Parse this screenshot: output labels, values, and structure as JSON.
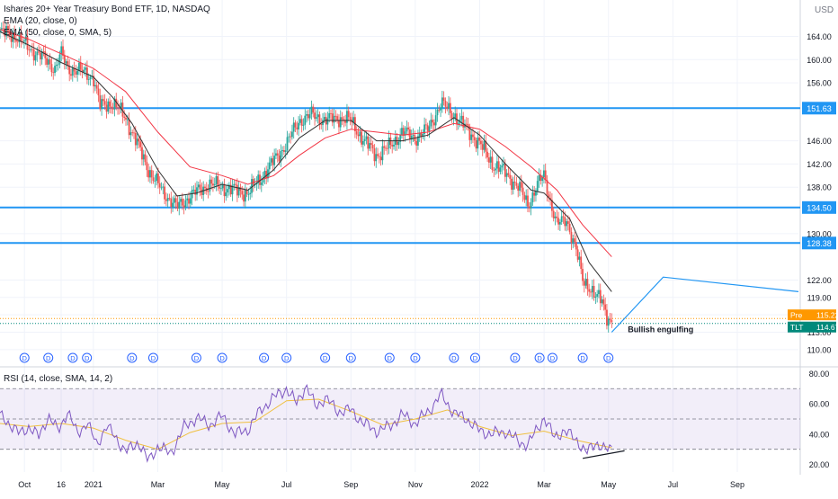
{
  "header": {
    "symbol_line": "Ishares 20+ Year Treasury Bond ETF, 1D, NASDAQ",
    "ind1": "EMA (20, close, 0)",
    "ind2": "EMA (50, close, 0, SMA, 5)",
    "rsi_label": "RSI (14, close, SMA, 14, 2)",
    "currency": "USD"
  },
  "colors": {
    "up": "#26a69a",
    "down": "#ef5350",
    "ema20": "#333333",
    "ema50": "#f23645",
    "hline": "#2196f3",
    "rsi": "#7e57c2",
    "rsi_ma": "#f0c040",
    "pre": "#ff9800",
    "tlt": "#00897b"
  },
  "chart_data": {
    "type": "candlestick",
    "price_ticks": [
      164.0,
      160.0,
      156.0,
      151.63,
      146.0,
      142.0,
      138.0,
      134.5,
      130.0,
      128.38,
      122.0,
      119.0,
      116.0,
      113.0,
      110.0
    ],
    "price_range": [
      107.5,
      169.5
    ],
    "x_labels": [
      {
        "t": 0.93,
        "label": "Oct"
      },
      {
        "t": 1.5,
        "label": "16"
      },
      {
        "t": 2.0,
        "label": "2021"
      },
      {
        "t": 3.0,
        "label": "Mar"
      },
      {
        "t": 4.0,
        "label": "May"
      },
      {
        "t": 5.0,
        "label": "Jul"
      },
      {
        "t": 6.0,
        "label": "Sep"
      },
      {
        "t": 7.0,
        "label": "Nov"
      },
      {
        "t": 8.0,
        "label": "2022"
      },
      {
        "t": 9.0,
        "label": "Mar"
      },
      {
        "t": 10.0,
        "label": "May"
      },
      {
        "t": 11.0,
        "label": "Jul"
      },
      {
        "t": 12.0,
        "label": "Sep"
      }
    ],
    "x_range": [
      0.55,
      12.95
    ],
    "close_path": [
      {
        "t": 0.55,
        "p": 164.8
      },
      {
        "t": 0.8,
        "p": 164.0
      },
      {
        "t": 1.0,
        "p": 162.0
      },
      {
        "t": 1.2,
        "p": 160.5
      },
      {
        "t": 1.4,
        "p": 158.5
      },
      {
        "t": 1.5,
        "p": 161.0
      },
      {
        "t": 1.6,
        "p": 158.5
      },
      {
        "t": 1.8,
        "p": 158.0
      },
      {
        "t": 2.0,
        "p": 157.0
      },
      {
        "t": 2.1,
        "p": 152.0
      },
      {
        "t": 2.3,
        "p": 152.5
      },
      {
        "t": 2.5,
        "p": 150.0
      },
      {
        "t": 2.7,
        "p": 145.0
      },
      {
        "t": 2.9,
        "p": 140.0
      },
      {
        "t": 3.1,
        "p": 137.0
      },
      {
        "t": 3.3,
        "p": 134.5
      },
      {
        "t": 3.5,
        "p": 136.5
      },
      {
        "t": 3.8,
        "p": 138.5
      },
      {
        "t": 4.0,
        "p": 138.0
      },
      {
        "t": 4.2,
        "p": 137.5
      },
      {
        "t": 4.4,
        "p": 137.0
      },
      {
        "t": 4.6,
        "p": 139.5
      },
      {
        "t": 4.8,
        "p": 142.5
      },
      {
        "t": 5.0,
        "p": 145.5
      },
      {
        "t": 5.2,
        "p": 149.5
      },
      {
        "t": 5.4,
        "p": 150.5
      },
      {
        "t": 5.6,
        "p": 149.5
      },
      {
        "t": 5.8,
        "p": 150.0
      },
      {
        "t": 6.0,
        "p": 149.5
      },
      {
        "t": 6.2,
        "p": 146.0
      },
      {
        "t": 6.4,
        "p": 143.5
      },
      {
        "t": 6.6,
        "p": 145.0
      },
      {
        "t": 6.8,
        "p": 147.5
      },
      {
        "t": 7.0,
        "p": 146.5
      },
      {
        "t": 7.2,
        "p": 148.0
      },
      {
        "t": 7.4,
        "p": 152.5
      },
      {
        "t": 7.6,
        "p": 150.5
      },
      {
        "t": 7.8,
        "p": 148.0
      },
      {
        "t": 8.0,
        "p": 145.5
      },
      {
        "t": 8.2,
        "p": 142.0
      },
      {
        "t": 8.4,
        "p": 140.5
      },
      {
        "t": 8.6,
        "p": 138.0
      },
      {
        "t": 8.75,
        "p": 135.0
      },
      {
        "t": 8.9,
        "p": 138.5
      },
      {
        "t": 9.0,
        "p": 140.0
      },
      {
        "t": 9.1,
        "p": 135.5
      },
      {
        "t": 9.2,
        "p": 131.5
      },
      {
        "t": 9.35,
        "p": 132.5
      },
      {
        "t": 9.5,
        "p": 127.0
      },
      {
        "t": 9.6,
        "p": 122.0
      },
      {
        "t": 9.7,
        "p": 121.0
      },
      {
        "t": 9.8,
        "p": 119.0
      },
      {
        "t": 9.9,
        "p": 118.5
      },
      {
        "t": 9.97,
        "p": 116.0
      },
      {
        "t": 10.05,
        "p": 114.67
      }
    ],
    "ema20": [
      {
        "t": 0.55,
        "p": 164.8
      },
      {
        "t": 1.0,
        "p": 162.5
      },
      {
        "t": 1.5,
        "p": 159.5
      },
      {
        "t": 2.0,
        "p": 157.0
      },
      {
        "t": 2.3,
        "p": 153.5
      },
      {
        "t": 2.6,
        "p": 149.0
      },
      {
        "t": 3.0,
        "p": 141.0
      },
      {
        "t": 3.3,
        "p": 136.5
      },
      {
        "t": 3.6,
        "p": 137.0
      },
      {
        "t": 4.0,
        "p": 138.5
      },
      {
        "t": 4.4,
        "p": 137.5
      },
      {
        "t": 4.8,
        "p": 141.0
      },
      {
        "t": 5.2,
        "p": 146.5
      },
      {
        "t": 5.6,
        "p": 149.5
      },
      {
        "t": 6.0,
        "p": 149.5
      },
      {
        "t": 6.4,
        "p": 146.0
      },
      {
        "t": 6.8,
        "p": 146.0
      },
      {
        "t": 7.2,
        "p": 147.0
      },
      {
        "t": 7.6,
        "p": 150.0
      },
      {
        "t": 8.0,
        "p": 147.0
      },
      {
        "t": 8.4,
        "p": 142.0
      },
      {
        "t": 8.8,
        "p": 137.5
      },
      {
        "t": 9.0,
        "p": 137.0
      },
      {
        "t": 9.4,
        "p": 132.5
      },
      {
        "t": 9.7,
        "p": 125.0
      },
      {
        "t": 10.05,
        "p": 120.0
      }
    ],
    "ema50": [
      {
        "t": 0.55,
        "p": 165.2
      },
      {
        "t": 1.0,
        "p": 163.5
      },
      {
        "t": 1.5,
        "p": 161.0
      },
      {
        "t": 2.0,
        "p": 158.5
      },
      {
        "t": 2.5,
        "p": 154.5
      },
      {
        "t": 3.0,
        "p": 147.5
      },
      {
        "t": 3.5,
        "p": 141.5
      },
      {
        "t": 4.0,
        "p": 140.0
      },
      {
        "t": 4.4,
        "p": 138.5
      },
      {
        "t": 4.8,
        "p": 140.0
      },
      {
        "t": 5.2,
        "p": 143.5
      },
      {
        "t": 5.6,
        "p": 146.5
      },
      {
        "t": 6.0,
        "p": 148.0
      },
      {
        "t": 6.4,
        "p": 147.5
      },
      {
        "t": 6.8,
        "p": 147.0
      },
      {
        "t": 7.2,
        "p": 147.5
      },
      {
        "t": 7.6,
        "p": 149.0
      },
      {
        "t": 8.0,
        "p": 148.0
      },
      {
        "t": 8.4,
        "p": 145.0
      },
      {
        "t": 8.8,
        "p": 141.5
      },
      {
        "t": 9.2,
        "p": 137.5
      },
      {
        "t": 9.6,
        "p": 131.5
      },
      {
        "t": 10.05,
        "p": 126.0
      }
    ],
    "hlines": [
      151.63,
      134.5,
      128.38
    ],
    "tags": [
      {
        "label": "Pre",
        "value": "115.22",
        "p": 115.22,
        "color": "#ff9800"
      },
      {
        "label": "TLT",
        "value": "114.67",
        "p": 114.67,
        "color": "#00897b"
      }
    ],
    "projection": [
      {
        "t": 10.05,
        "p": 113.0
      },
      {
        "t": 10.85,
        "p": 122.5
      },
      {
        "t": 12.95,
        "p": 120.0
      }
    ],
    "annotation": {
      "text": "Bullish engulfing",
      "t": 10.3,
      "p": 113.5
    },
    "dividends": [
      0.93,
      1.3,
      1.68,
      1.9,
      2.6,
      2.93,
      3.6,
      4.0,
      4.65,
      5.0,
      5.6,
      6.0,
      6.6,
      7.0,
      7.6,
      7.93,
      8.55,
      8.93,
      9.13,
      9.6,
      10.0
    ],
    "dividend_label": "D",
    "rsi": {
      "ticks": [
        80.0,
        60.0,
        40.0,
        20.0
      ],
      "range": [
        15,
        82
      ],
      "band": [
        30,
        70
      ],
      "mid": 50,
      "path": [
        {
          "t": 0.55,
          "p": 52
        },
        {
          "t": 0.7,
          "p": 47
        },
        {
          "t": 0.85,
          "p": 40
        },
        {
          "t": 1.0,
          "p": 45
        },
        {
          "t": 1.15,
          "p": 38
        },
        {
          "t": 1.3,
          "p": 52
        },
        {
          "t": 1.45,
          "p": 42
        },
        {
          "t": 1.6,
          "p": 55
        },
        {
          "t": 1.75,
          "p": 40
        },
        {
          "t": 1.9,
          "p": 48
        },
        {
          "t": 2.05,
          "p": 33
        },
        {
          "t": 2.2,
          "p": 45
        },
        {
          "t": 2.35,
          "p": 38
        },
        {
          "t": 2.5,
          "p": 28
        },
        {
          "t": 2.7,
          "p": 35
        },
        {
          "t": 2.85,
          "p": 22
        },
        {
          "t": 3.0,
          "p": 32
        },
        {
          "t": 3.2,
          "p": 27
        },
        {
          "t": 3.4,
          "p": 44
        },
        {
          "t": 3.6,
          "p": 51
        },
        {
          "t": 3.8,
          "p": 46
        },
        {
          "t": 4.0,
          "p": 52
        },
        {
          "t": 4.2,
          "p": 40
        },
        {
          "t": 4.4,
          "p": 43
        },
        {
          "t": 4.6,
          "p": 56
        },
        {
          "t": 4.8,
          "p": 64
        },
        {
          "t": 5.0,
          "p": 70
        },
        {
          "t": 5.15,
          "p": 60
        },
        {
          "t": 5.3,
          "p": 72
        },
        {
          "t": 5.45,
          "p": 58
        },
        {
          "t": 5.6,
          "p": 64
        },
        {
          "t": 5.8,
          "p": 55
        },
        {
          "t": 6.0,
          "p": 56
        },
        {
          "t": 6.2,
          "p": 47
        },
        {
          "t": 6.4,
          "p": 42
        },
        {
          "t": 6.6,
          "p": 45
        },
        {
          "t": 6.8,
          "p": 53
        },
        {
          "t": 7.0,
          "p": 47
        },
        {
          "t": 7.2,
          "p": 55
        },
        {
          "t": 7.4,
          "p": 66
        },
        {
          "t": 7.6,
          "p": 54
        },
        {
          "t": 7.8,
          "p": 50
        },
        {
          "t": 8.0,
          "p": 42
        },
        {
          "t": 8.2,
          "p": 40
        },
        {
          "t": 8.4,
          "p": 42
        },
        {
          "t": 8.6,
          "p": 35
        },
        {
          "t": 8.75,
          "p": 33
        },
        {
          "t": 8.9,
          "p": 44
        },
        {
          "t": 9.0,
          "p": 51
        },
        {
          "t": 9.15,
          "p": 38
        },
        {
          "t": 9.3,
          "p": 42
        },
        {
          "t": 9.5,
          "p": 37
        },
        {
          "t": 9.65,
          "p": 27
        },
        {
          "t": 9.8,
          "p": 35
        },
        {
          "t": 9.95,
          "p": 29
        },
        {
          "t": 10.05,
          "p": 31
        }
      ],
      "ma_path": [
        {
          "t": 0.55,
          "p": 47
        },
        {
          "t": 1.0,
          "p": 45
        },
        {
          "t": 1.5,
          "p": 47
        },
        {
          "t": 2.0,
          "p": 44
        },
        {
          "t": 2.5,
          "p": 36
        },
        {
          "t": 3.0,
          "p": 30
        },
        {
          "t": 3.5,
          "p": 41
        },
        {
          "t": 4.0,
          "p": 47
        },
        {
          "t": 4.5,
          "p": 48
        },
        {
          "t": 5.0,
          "p": 62
        },
        {
          "t": 5.5,
          "p": 63
        },
        {
          "t": 6.0,
          "p": 55
        },
        {
          "t": 6.5,
          "p": 46
        },
        {
          "t": 7.0,
          "p": 50
        },
        {
          "t": 7.5,
          "p": 56
        },
        {
          "t": 8.0,
          "p": 45
        },
        {
          "t": 8.5,
          "p": 39
        },
        {
          "t": 9.0,
          "p": 42
        },
        {
          "t": 9.5,
          "p": 36
        },
        {
          "t": 10.05,
          "p": 31
        }
      ],
      "divergence": [
        {
          "t": 9.6,
          "p": 24
        },
        {
          "t": 10.25,
          "p": 29
        }
      ]
    }
  }
}
